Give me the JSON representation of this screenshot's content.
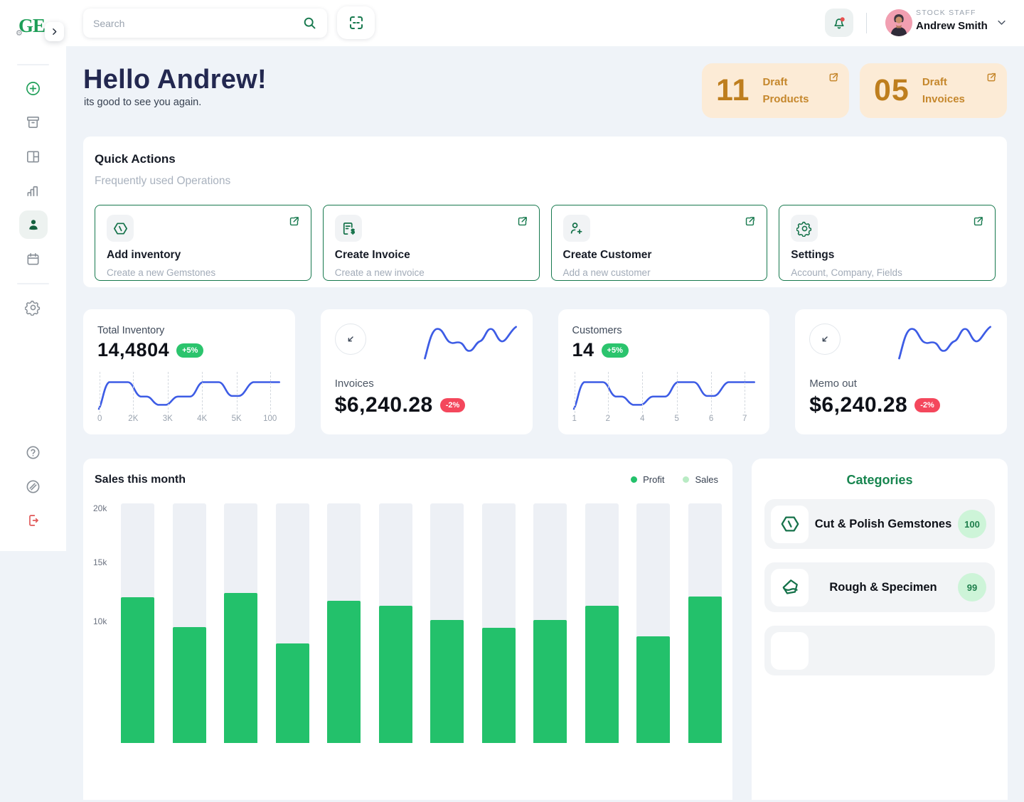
{
  "topbar": {
    "search_placeholder": "Search",
    "user_role": "STOCK STAFF",
    "user_name": "Andrew Smith"
  },
  "sidebar": {
    "logo_text": "GE"
  },
  "hero": {
    "greeting": "Hello Andrew!",
    "subtitle": "its good to see you again."
  },
  "draft_cards": [
    {
      "value": "11",
      "label": "Draft Products"
    },
    {
      "value": "05",
      "label": "Draft Invoices"
    }
  ],
  "quick_actions": {
    "title": "Quick Actions",
    "subtitle": "Frequently used Operations",
    "cards": [
      {
        "icon": "gem-hexagon-icon",
        "title": "Add inventory",
        "subtitle": "Create a new Gemstones"
      },
      {
        "icon": "invoice-icon",
        "title": "Create Invoice",
        "subtitle": "Create a new invoice"
      },
      {
        "icon": "person-add-icon",
        "title": "Create Customer",
        "subtitle": "Add a new customer"
      },
      {
        "icon": "gear-icon",
        "title": "Settings",
        "subtitle": "Account, Company, Fields"
      }
    ]
  },
  "metric_cards": [
    {
      "label": "Total Inventory",
      "value": "14,4804",
      "badge": "+5%",
      "badge_type": "up"
    },
    {
      "label": "Invoices",
      "value": "$6,240.28",
      "badge": "-2%",
      "badge_type": "down"
    },
    {
      "label": "Customers",
      "value": "14",
      "badge": "+5%",
      "badge_type": "up"
    },
    {
      "label": "Memo out",
      "value": "$6,240.28",
      "badge": "-2%",
      "badge_type": "down"
    }
  ],
  "categories": {
    "title": "Categories",
    "items": [
      {
        "label": "Cut & Polish Gemstones",
        "count": "100"
      },
      {
        "label": "Rough & Specimen",
        "count": "99"
      },
      {
        "label": "",
        "count": ""
      }
    ]
  },
  "chart_data": [
    {
      "id": "sales_this_month",
      "type": "bar",
      "title": "Sales this month",
      "categories": [
        "",
        "",
        "",
        "",
        "",
        "",
        "",
        "",
        "",
        "",
        "",
        ""
      ],
      "x_axis_visible": false,
      "series": [
        {
          "name": "Profit",
          "color": "#23C16B",
          "values": [
            12400,
            9900,
            12800,
            8500,
            12100,
            11700,
            10500,
            9800,
            10500,
            11700,
            9100,
            12500
          ]
        },
        {
          "name": "Sales",
          "color": "#EDF0F5",
          "values": [
            20400,
            20400,
            20400,
            20400,
            20400,
            20400,
            20400,
            20400,
            20400,
            20400,
            20400,
            20400
          ]
        }
      ],
      "ylim": [
        0,
        20400
      ],
      "yticks": [
        "20k",
        "15k",
        "10k"
      ],
      "ytick_values": [
        20000,
        15000,
        10000
      ],
      "grid": false,
      "legend_position": "top-right"
    },
    {
      "id": "total_inventory_trend",
      "type": "line",
      "color": "#3D5CE5",
      "x_ticks": [
        "0",
        "2K",
        "3K",
        "4K",
        "5K",
        "100"
      ],
      "values_relative": [
        10,
        90,
        90,
        55,
        55,
        30,
        30,
        50,
        50,
        88,
        88,
        48,
        60,
        90,
        90
      ]
    },
    {
      "id": "customers_trend",
      "type": "line",
      "color": "#3D5CE5",
      "x_ticks": [
        "1",
        "2",
        "4",
        "5",
        "6",
        "7"
      ],
      "values_relative": [
        10,
        90,
        90,
        55,
        55,
        30,
        30,
        50,
        50,
        88,
        88,
        48,
        60,
        90,
        90
      ]
    },
    {
      "id": "invoices_sparkline",
      "type": "line",
      "color": "#3D5CE5",
      "values_relative": [
        8,
        88,
        85,
        55,
        52,
        30,
        30,
        55,
        58,
        88,
        85,
        48,
        60,
        92
      ]
    },
    {
      "id": "memo_out_sparkline",
      "type": "line",
      "color": "#3D5CE5",
      "values_relative": [
        8,
        88,
        85,
        55,
        52,
        30,
        30,
        55,
        58,
        88,
        85,
        48,
        60,
        92
      ]
    }
  ],
  "colors": {
    "primary_green": "#17794E",
    "bar_green": "#23C16B",
    "sales_light_green": "#B9EBC4",
    "badge_up": "#2BC46D",
    "badge_down": "#F4475C",
    "draft_bg": "#FCEBD6",
    "draft_text": "#BE7E1E",
    "page_bg": "#EFF3F8",
    "spark_blue": "#3D5CE5",
    "hero_navy": "#232850",
    "logout_red": "#E05757"
  }
}
